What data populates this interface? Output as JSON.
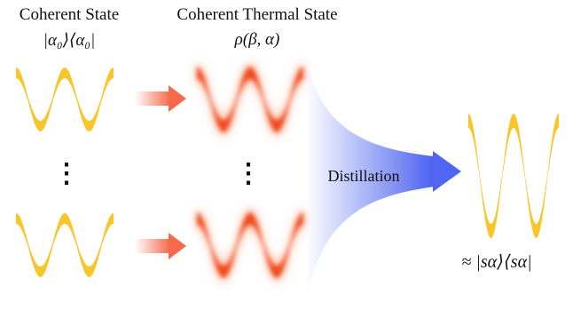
{
  "columns": {
    "left": {
      "title": "Coherent State",
      "formula": "|α₀⟩⟨α₀|"
    },
    "middle": {
      "title": "Coherent Thermal State",
      "formula": "ρ(β, α)"
    }
  },
  "process": {
    "label": "Distillation"
  },
  "output": {
    "formula": "≈ |sα⟩⟨sα|"
  },
  "ellipsis": "⋮",
  "colors": {
    "coherent_wave": "#f8c52a",
    "thermal_wave": "#f04a1e",
    "pump_arrow": "#f46a4a",
    "distill_arrow": "#4f66f0"
  }
}
